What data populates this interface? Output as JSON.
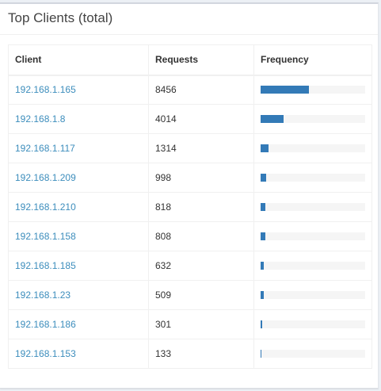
{
  "panel": {
    "title": "Top Clients (total)"
  },
  "table": {
    "headers": {
      "client": "Client",
      "requests": "Requests",
      "frequency": "Frequency"
    },
    "rows": [
      {
        "client": "192.168.1.165",
        "requests": "8456",
        "frequency_pct": 46.0
      },
      {
        "client": "192.168.1.8",
        "requests": "4014",
        "frequency_pct": 21.9
      },
      {
        "client": "192.168.1.117",
        "requests": "1314",
        "frequency_pct": 7.2
      },
      {
        "client": "192.168.1.209",
        "requests": "998",
        "frequency_pct": 5.4
      },
      {
        "client": "192.168.1.210",
        "requests": "818",
        "frequency_pct": 4.5
      },
      {
        "client": "192.168.1.158",
        "requests": "808",
        "frequency_pct": 4.4
      },
      {
        "client": "192.168.1.185",
        "requests": "632",
        "frequency_pct": 3.4
      },
      {
        "client": "192.168.1.23",
        "requests": "509",
        "frequency_pct": 2.8
      },
      {
        "client": "192.168.1.186",
        "requests": "301",
        "frequency_pct": 1.6
      },
      {
        "client": "192.168.1.153",
        "requests": "133",
        "frequency_pct": 0.7
      }
    ]
  },
  "colors": {
    "link": "#3c8dbc",
    "bar": "#337ab7",
    "bar_track": "#f5f5f5"
  }
}
